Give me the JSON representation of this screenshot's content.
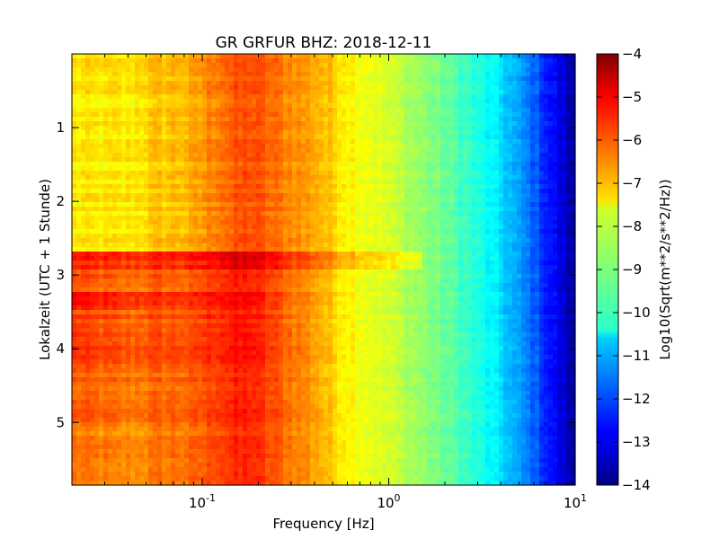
{
  "chart_data": {
    "type": "heatmap",
    "title": "GR GRFUR BHZ: 2018-12-11",
    "xlabel": "Frequency [Hz]",
    "ylabel": "Lokalzeit (UTC + 1 Stunde)",
    "colorbar_label": "Log10(Sqrt(m**2/s**2/Hz))",
    "x_scale": "log",
    "xlim": [
      0.02,
      10
    ],
    "ylim": [
      5.85,
      0
    ],
    "clim": [
      -14,
      -4
    ],
    "colormap": "jet",
    "x_ticks": [
      {
        "value": 0.1,
        "base": "10",
        "exp": "-1"
      },
      {
        "value": 1,
        "base": "10",
        "exp": "0"
      },
      {
        "value": 10,
        "base": "10",
        "exp": "1"
      }
    ],
    "y_ticks": [
      {
        "value": 1,
        "label": "1"
      },
      {
        "value": 2,
        "label": "2"
      },
      {
        "value": 3,
        "label": "3"
      },
      {
        "value": 4,
        "label": "4"
      },
      {
        "value": 5,
        "label": "5"
      }
    ],
    "colorbar_ticks": [
      {
        "value": -4,
        "label": "−4"
      },
      {
        "value": -5,
        "label": "−5"
      },
      {
        "value": -6,
        "label": "−6"
      },
      {
        "value": -7,
        "label": "−7"
      },
      {
        "value": -8,
        "label": "−8"
      },
      {
        "value": -9,
        "label": "−9"
      },
      {
        "value": -10,
        "label": "−10"
      },
      {
        "value": -11,
        "label": "−11"
      },
      {
        "value": -12,
        "label": "−12"
      },
      {
        "value": -13,
        "label": "−13"
      },
      {
        "value": -14,
        "label": "−14"
      }
    ],
    "spectral_profile": [
      {
        "freq": 0.02,
        "value": -7.6
      },
      {
        "freq": 0.04,
        "value": -7.6
      },
      {
        "freq": 0.06,
        "value": -7.2
      },
      {
        "freq": 0.09,
        "value": -7.0
      },
      {
        "freq": 0.12,
        "value": -6.4
      },
      {
        "freq": 0.18,
        "value": -6.0
      },
      {
        "freq": 0.25,
        "value": -6.4
      },
      {
        "freq": 0.4,
        "value": -6.9
      },
      {
        "freq": 0.6,
        "value": -7.6
      },
      {
        "freq": 1.0,
        "value": -8.2
      },
      {
        "freq": 1.5,
        "value": -8.8
      },
      {
        "freq": 2.5,
        "value": -9.6
      },
      {
        "freq": 4.0,
        "value": -10.6
      },
      {
        "freq": 6.0,
        "value": -11.8
      },
      {
        "freq": 8.0,
        "value": -12.9
      },
      {
        "freq": 10.0,
        "value": -13.8
      }
    ],
    "time_segments": [
      {
        "t_start": 0.0,
        "t_end": 2.7,
        "lowfreq_offset": 0.0
      },
      {
        "t_start": 2.7,
        "t_end": 2.9,
        "lowfreq_offset": 1.5,
        "highfreq_offset": 0.6,
        "extends_to_freq": 1.5
      },
      {
        "t_start": 2.9,
        "t_end": 3.2,
        "lowfreq_offset": 1.6
      },
      {
        "t_start": 3.2,
        "t_end": 3.5,
        "lowfreq_offset": 2.3
      },
      {
        "t_start": 3.5,
        "t_end": 4.3,
        "lowfreq_offset": 1.8
      },
      {
        "t_start": 4.3,
        "t_end": 5.0,
        "lowfreq_offset": 1.4
      },
      {
        "t_start": 5.0,
        "t_end": 5.85,
        "lowfreq_offset": 1.2
      }
    ]
  }
}
